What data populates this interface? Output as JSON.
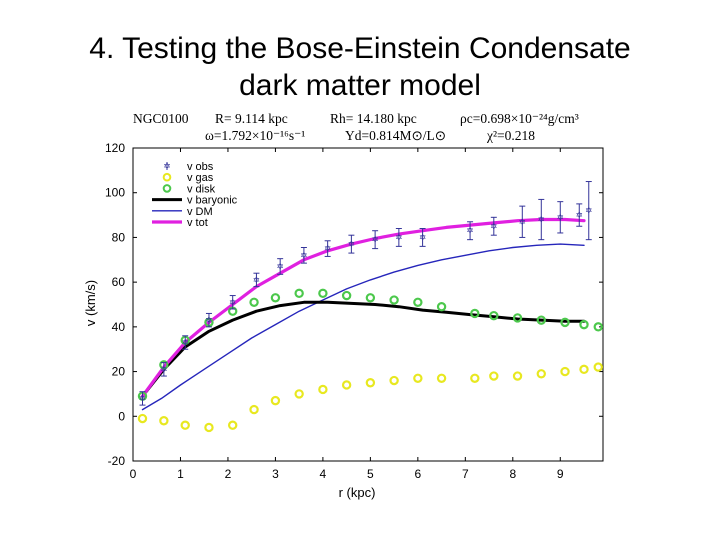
{
  "slide": {
    "title_line1": "4. Testing the Bose-Einstein Condensate",
    "title_line2": "dark matter model"
  },
  "header": {
    "galaxy": "NGC0100",
    "r_param": "R= 9.114 kpc",
    "rh_param": "Rh= 14.180 kpc",
    "rho_param": "ρc=0.698×10⁻²⁴g/cm³",
    "omega_param": "ω=1.792×10⁻¹⁶s⁻¹",
    "upsilon_param": "Υd=0.814M⊙/L⊙",
    "chi_param": "χ²=0.218"
  },
  "chart_data": {
    "type": "line",
    "xlabel": "r (kpc)",
    "ylabel": "v (km/s)",
    "xlim": [
      0,
      9.9
    ],
    "ylim": [
      -20,
      120
    ],
    "xticks": [
      "0",
      "1",
      "2",
      "3",
      "4",
      "5",
      "6",
      "7",
      "8",
      "9"
    ],
    "yticks": [
      "-20",
      "0",
      "20",
      "40",
      "60",
      "80",
      "100",
      "120"
    ],
    "grid": false,
    "legend_position": "top-left",
    "legend": [
      "v obs",
      "v gas",
      "v disk",
      "v baryonic",
      "v DM",
      "v tot"
    ],
    "series": [
      {
        "name": "v obs",
        "kind": "errorbar",
        "color": "#333399",
        "points": [
          {
            "x": 0.2,
            "y": 8,
            "err": 3
          },
          {
            "x": 0.65,
            "y": 21,
            "err": 3
          },
          {
            "x": 1.1,
            "y": 33,
            "err": 3
          },
          {
            "x": 1.6,
            "y": 43,
            "err": 3
          },
          {
            "x": 2.1,
            "y": 51,
            "err": 3
          },
          {
            "x": 2.6,
            "y": 61,
            "err": 3
          },
          {
            "x": 3.1,
            "y": 67,
            "err": 3.5
          },
          {
            "x": 3.6,
            "y": 72,
            "err": 3.5
          },
          {
            "x": 4.1,
            "y": 75,
            "err": 3.5
          },
          {
            "x": 4.6,
            "y": 77,
            "err": 4
          },
          {
            "x": 5.1,
            "y": 79,
            "err": 4
          },
          {
            "x": 5.6,
            "y": 80,
            "err": 4
          },
          {
            "x": 6.1,
            "y": 80,
            "err": 4
          },
          {
            "x": 7.1,
            "y": 83,
            "err": 4
          },
          {
            "x": 7.6,
            "y": 85,
            "err": 4
          },
          {
            "x": 8.2,
            "y": 87,
            "err": 7
          },
          {
            "x": 8.6,
            "y": 88,
            "err": 9
          },
          {
            "x": 9.0,
            "y": 89,
            "err": 7
          },
          {
            "x": 9.4,
            "y": 90,
            "err": 5
          },
          {
            "x": 9.6,
            "y": 92,
            "err": 13
          }
        ]
      },
      {
        "name": "v gas",
        "kind": "marker",
        "color": "#e8e820",
        "points": [
          {
            "x": 0.2,
            "y": -1
          },
          {
            "x": 0.65,
            "y": -2
          },
          {
            "x": 1.1,
            "y": -4
          },
          {
            "x": 1.6,
            "y": -5
          },
          {
            "x": 2.1,
            "y": -4
          },
          {
            "x": 2.55,
            "y": 3
          },
          {
            "x": 3.0,
            "y": 7
          },
          {
            "x": 3.5,
            "y": 10
          },
          {
            "x": 4.0,
            "y": 12
          },
          {
            "x": 4.5,
            "y": 14
          },
          {
            "x": 5.0,
            "y": 15
          },
          {
            "x": 5.5,
            "y": 16
          },
          {
            "x": 6.0,
            "y": 17
          },
          {
            "x": 6.5,
            "y": 17
          },
          {
            "x": 7.2,
            "y": 17
          },
          {
            "x": 7.6,
            "y": 18
          },
          {
            "x": 8.1,
            "y": 18
          },
          {
            "x": 8.6,
            "y": 19
          },
          {
            "x": 9.1,
            "y": 20
          },
          {
            "x": 9.5,
            "y": 21
          },
          {
            "x": 9.8,
            "y": 22
          }
        ]
      },
      {
        "name": "v disk",
        "kind": "marker",
        "color": "#4cc84c",
        "points": [
          {
            "x": 0.2,
            "y": 9
          },
          {
            "x": 0.65,
            "y": 23
          },
          {
            "x": 1.1,
            "y": 34
          },
          {
            "x": 1.6,
            "y": 42
          },
          {
            "x": 2.1,
            "y": 47
          },
          {
            "x": 2.55,
            "y": 51
          },
          {
            "x": 3.0,
            "y": 53
          },
          {
            "x": 3.5,
            "y": 55
          },
          {
            "x": 4.0,
            "y": 55
          },
          {
            "x": 4.5,
            "y": 54
          },
          {
            "x": 5.0,
            "y": 53
          },
          {
            "x": 5.5,
            "y": 52
          },
          {
            "x": 6.0,
            "y": 51
          },
          {
            "x": 6.5,
            "y": 49
          },
          {
            "x": 7.2,
            "y": 46
          },
          {
            "x": 7.6,
            "y": 45
          },
          {
            "x": 8.1,
            "y": 44
          },
          {
            "x": 8.6,
            "y": 43
          },
          {
            "x": 9.1,
            "y": 42
          },
          {
            "x": 9.5,
            "y": 41
          },
          {
            "x": 9.8,
            "y": 40
          }
        ]
      },
      {
        "name": "v baryonic",
        "kind": "line",
        "color": "#000000",
        "width": 3,
        "points": [
          {
            "x": 0.2,
            "y": 9
          },
          {
            "x": 0.65,
            "y": 21
          },
          {
            "x": 1.1,
            "y": 31
          },
          {
            "x": 1.6,
            "y": 38
          },
          {
            "x": 2.1,
            "y": 43
          },
          {
            "x": 2.6,
            "y": 47
          },
          {
            "x": 3.1,
            "y": 49.5
          },
          {
            "x": 3.6,
            "y": 51
          },
          {
            "x": 4.1,
            "y": 51
          },
          {
            "x": 4.6,
            "y": 50.5
          },
          {
            "x": 5.1,
            "y": 50
          },
          {
            "x": 5.6,
            "y": 49
          },
          {
            "x": 6.1,
            "y": 47.5
          },
          {
            "x": 6.6,
            "y": 46.5
          },
          {
            "x": 7.1,
            "y": 45.5
          },
          {
            "x": 7.6,
            "y": 44.5
          },
          {
            "x": 8.1,
            "y": 43.5
          },
          {
            "x": 8.6,
            "y": 43
          },
          {
            "x": 9.1,
            "y": 42.5
          },
          {
            "x": 9.5,
            "y": 42.5
          }
        ]
      },
      {
        "name": "v DM",
        "kind": "line",
        "color": "#2626bb",
        "width": 1.4,
        "points": [
          {
            "x": 0.2,
            "y": 3
          },
          {
            "x": 0.6,
            "y": 8
          },
          {
            "x": 1.0,
            "y": 14
          },
          {
            "x": 1.5,
            "y": 21
          },
          {
            "x": 2.0,
            "y": 28
          },
          {
            "x": 2.5,
            "y": 35
          },
          {
            "x": 3.0,
            "y": 41
          },
          {
            "x": 3.5,
            "y": 47
          },
          {
            "x": 4.0,
            "y": 52
          },
          {
            "x": 4.5,
            "y": 57
          },
          {
            "x": 5.0,
            "y": 61
          },
          {
            "x": 5.5,
            "y": 64.5
          },
          {
            "x": 6.0,
            "y": 67.5
          },
          {
            "x": 6.5,
            "y": 70
          },
          {
            "x": 7.0,
            "y": 72
          },
          {
            "x": 7.5,
            "y": 74
          },
          {
            "x": 8.0,
            "y": 75.5
          },
          {
            "x": 8.5,
            "y": 76.5
          },
          {
            "x": 9.0,
            "y": 77
          },
          {
            "x": 9.5,
            "y": 76.5
          }
        ]
      },
      {
        "name": "v tot",
        "kind": "line",
        "color": "#e020e0",
        "width": 3.2,
        "points": [
          {
            "x": 0.2,
            "y": 9
          },
          {
            "x": 0.65,
            "y": 22
          },
          {
            "x": 1.1,
            "y": 33
          },
          {
            "x": 1.6,
            "y": 42
          },
          {
            "x": 2.1,
            "y": 50
          },
          {
            "x": 2.6,
            "y": 58
          },
          {
            "x": 3.1,
            "y": 64
          },
          {
            "x": 3.6,
            "y": 70
          },
          {
            "x": 4.1,
            "y": 74
          },
          {
            "x": 4.6,
            "y": 77
          },
          {
            "x": 5.1,
            "y": 79.5
          },
          {
            "x": 5.6,
            "y": 81.5
          },
          {
            "x": 6.1,
            "y": 83
          },
          {
            "x": 6.6,
            "y": 84.5
          },
          {
            "x": 7.1,
            "y": 85.5
          },
          {
            "x": 7.6,
            "y": 86.5
          },
          {
            "x": 8.1,
            "y": 87.5
          },
          {
            "x": 8.6,
            "y": 88
          },
          {
            "x": 9.1,
            "y": 88
          },
          {
            "x": 9.5,
            "y": 87.5
          }
        ]
      }
    ]
  }
}
